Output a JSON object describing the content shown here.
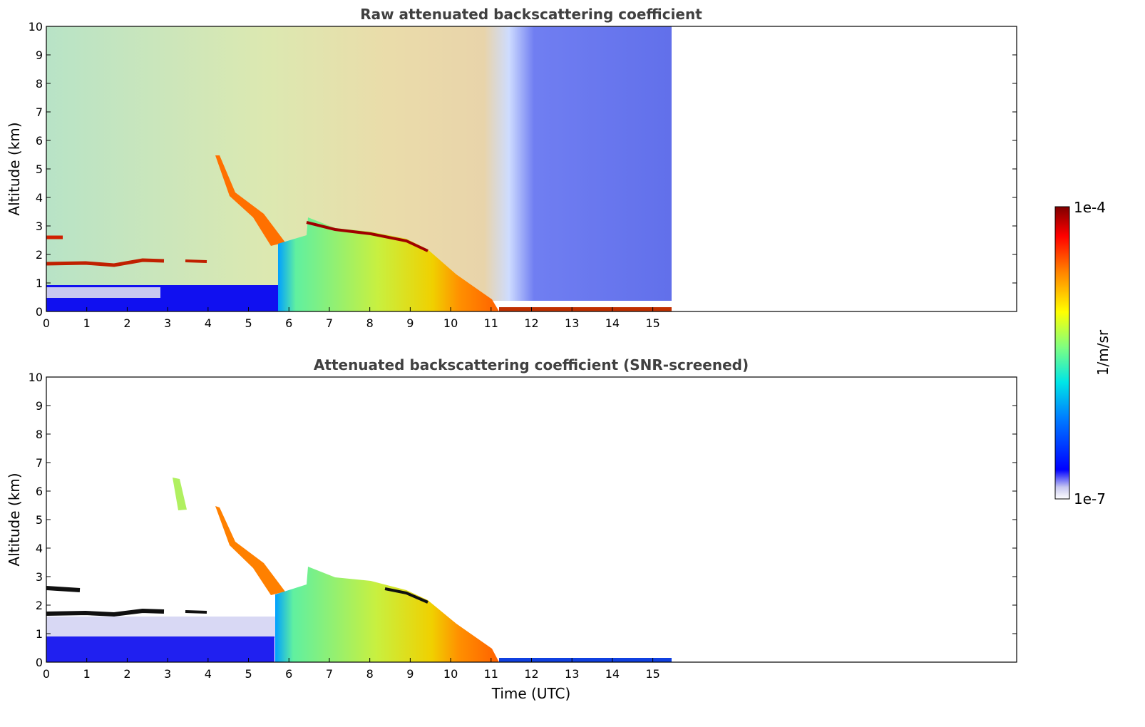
{
  "chart_data": [
    {
      "type": "heatmap",
      "title": "Raw attenuated backscattering coefficient",
      "ylabel": "Altitude (km)",
      "xlabel": "",
      "xlim": [
        0,
        24
      ],
      "ylim": [
        0,
        10
      ],
      "xticks": [
        "0",
        "1",
        "2",
        "3",
        "4",
        "5",
        "6",
        "7",
        "8",
        "9",
        "10",
        "11",
        "12",
        "13",
        "14",
        "15"
      ],
      "yticks": [
        "0",
        "1",
        "2",
        "3",
        "4",
        "5",
        "6",
        "7",
        "8",
        "9",
        "10"
      ],
      "data_end_time": 15.5,
      "features": [
        {
          "kind": "elevated_layer",
          "t": [
            0.0,
            0.4
          ],
          "altitude": 2.6
        },
        {
          "kind": "elevated_layer",
          "t": [
            0.0,
            4.0
          ],
          "altitude": 1.7
        },
        {
          "kind": "boundary_layer",
          "t": [
            0.0,
            5.8
          ],
          "top": 0.8
        },
        {
          "kind": "descending_cloud",
          "start": [
            4.2,
            5.4
          ],
          "end": [
            5.8,
            2.4
          ]
        },
        {
          "kind": "precipitating_cloud",
          "t": [
            5.8,
            10.5
          ],
          "cloud_top": 3.0
        },
        {
          "kind": "low_cloud",
          "t": [
            11.0,
            15.5
          ],
          "altitude": 0.1
        }
      ]
    },
    {
      "type": "heatmap",
      "title": "Attenuated backscattering coefficient (SNR-screened)",
      "ylabel": "Altitude (km)",
      "xlabel": "Time (UTC)",
      "xlim": [
        0,
        24
      ],
      "ylim": [
        0,
        10
      ],
      "xticks": [
        "0",
        "1",
        "2",
        "3",
        "4",
        "5",
        "6",
        "7",
        "8",
        "9",
        "10",
        "11",
        "12",
        "13",
        "14",
        "15"
      ],
      "yticks": [
        "0",
        "1",
        "2",
        "3",
        "4",
        "5",
        "6",
        "7",
        "8",
        "9",
        "10"
      ],
      "data_end_time": 15.5
    }
  ],
  "colorbar": {
    "max_label": "1e-4",
    "min_label": "1e-7",
    "unit_label": "1/m/sr",
    "colormap": [
      "#00007f",
      "#0000ff",
      "#0080ff",
      "#00ffff",
      "#80ff80",
      "#ffff00",
      "#ff8000",
      "#ff0000",
      "#7f0000"
    ]
  },
  "colors": {
    "text": "#404040",
    "axes": "#000000"
  }
}
